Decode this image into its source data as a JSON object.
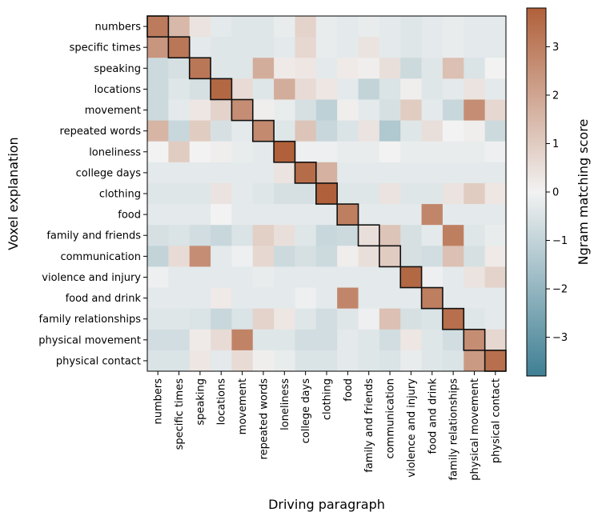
{
  "chart_data": {
    "type": "heatmap",
    "title": "",
    "xlabel": "Driving paragraph",
    "ylabel": "Voxel explanation",
    "row_labels": [
      "numbers",
      "specific times",
      "speaking",
      "locations",
      "movement",
      "repeated words",
      "loneliness",
      "college days",
      "clothing",
      "food",
      "family and friends",
      "communication",
      "violence and injury",
      "food and drink",
      "family relationships",
      "physical movement",
      "physical contact"
    ],
    "col_labels": [
      "numbers",
      "specific times",
      "speaking",
      "locations",
      "movement",
      "repeated words",
      "loneliness",
      "college days",
      "clothing",
      "food",
      "family and friends",
      "communication",
      "violence and injury",
      "food and drink",
      "family relationships",
      "physical movement",
      "physical contact"
    ],
    "values": [
      [
        3.1,
        1.5,
        0.4,
        -0.3,
        -0.4,
        -0.4,
        -0.2,
        0.8,
        -0.2,
        -0.3,
        -0.2,
        -0.3,
        -0.4,
        -0.3,
        -0.2,
        -0.3,
        -0.3
      ],
      [
        2.4,
        3.2,
        -0.3,
        -0.4,
        -0.4,
        -0.4,
        -0.3,
        0.7,
        -0.2,
        -0.3,
        0.4,
        -0.3,
        -0.4,
        -0.3,
        -0.2,
        -0.3,
        -0.3
      ],
      [
        -0.8,
        -0.6,
        3.2,
        -0.4,
        -0.4,
        1.8,
        0.2,
        0.3,
        -0.3,
        0.2,
        0.1,
        0.5,
        -0.8,
        -0.4,
        1.3,
        -0.5,
        0.0
      ],
      [
        -0.8,
        -0.4,
        -0.6,
        3.6,
        0.6,
        -0.4,
        1.8,
        0.6,
        0.3,
        -0.3,
        -1.0,
        -0.5,
        0.1,
        -0.4,
        -0.3,
        0.4,
        -0.3
      ],
      [
        -0.8,
        -0.3,
        0.3,
        0.8,
        2.6,
        0.1,
        -0.2,
        -0.6,
        -1.1,
        0.1,
        -0.3,
        -0.6,
        1.0,
        -0.3,
        -0.9,
        2.6,
        0.7
      ],
      [
        1.6,
        -0.9,
        1.0,
        -0.6,
        -0.3,
        2.7,
        -0.4,
        1.2,
        -0.9,
        -0.5,
        0.4,
        -1.4,
        -0.4,
        0.5,
        0.0,
        0.1,
        -0.8
      ],
      [
        0.0,
        1.0,
        0.0,
        0.1,
        -0.2,
        -0.3,
        3.8,
        -0.1,
        -0.1,
        -0.2,
        -0.2,
        0.0,
        -0.2,
        -0.2,
        -0.2,
        -0.2,
        -0.1
      ],
      [
        -0.3,
        -0.3,
        -0.3,
        -0.3,
        -0.3,
        -0.3,
        0.4,
        3.5,
        1.7,
        -0.3,
        -0.3,
        -0.3,
        -0.3,
        -0.3,
        -0.3,
        -0.3,
        -0.3
      ],
      [
        -0.4,
        -0.4,
        -0.4,
        0.4,
        -0.3,
        -0.4,
        -0.6,
        -0.6,
        3.8,
        -0.4,
        -0.4,
        0.4,
        -0.4,
        -0.4,
        0.4,
        1.0,
        0.3
      ],
      [
        -0.3,
        -0.3,
        -0.3,
        0.0,
        -0.3,
        -0.3,
        -0.3,
        -0.3,
        -0.3,
        3.0,
        -0.3,
        -0.3,
        -0.3,
        2.8,
        -0.3,
        -0.3,
        -0.3
      ],
      [
        -0.6,
        -0.5,
        -0.7,
        -0.9,
        -0.5,
        0.9,
        0.5,
        -0.4,
        -0.9,
        -0.8,
        0.5,
        1.2,
        -0.6,
        -0.3,
        3.0,
        -0.4,
        -0.2
      ],
      [
        -1.0,
        0.6,
        2.6,
        -0.3,
        -0.1,
        0.7,
        -0.8,
        -0.6,
        -0.8,
        0.1,
        0.5,
        1.0,
        -0.6,
        -0.7,
        1.3,
        -0.6,
        0.2
      ],
      [
        -0.1,
        -0.3,
        -0.3,
        -0.3,
        -0.3,
        -0.2,
        -0.3,
        -0.3,
        -0.3,
        -0.3,
        -0.3,
        -0.3,
        3.6,
        -0.1,
        -0.3,
        0.4,
        0.8
      ],
      [
        -0.3,
        -0.3,
        -0.3,
        0.2,
        -0.3,
        -0.3,
        -0.3,
        -0.1,
        -0.3,
        2.8,
        -0.3,
        -0.3,
        -0.3,
        3.0,
        -0.3,
        -0.3,
        -0.3
      ],
      [
        -0.4,
        -0.4,
        -0.5,
        -0.9,
        -0.5,
        0.8,
        0.3,
        -0.4,
        -0.7,
        -0.4,
        -0.1,
        1.3,
        -0.6,
        -0.5,
        3.4,
        -0.4,
        -0.3
      ],
      [
        -0.7,
        -0.7,
        0.2,
        0.6,
        2.9,
        -0.4,
        -0.4,
        -0.7,
        -0.7,
        -0.3,
        -0.4,
        -0.7,
        0.3,
        -0.4,
        -0.7,
        2.6,
        0.7
      ],
      [
        -0.5,
        -0.5,
        0.3,
        -0.3,
        0.6,
        0.1,
        -0.2,
        -0.5,
        -0.5,
        -0.3,
        -0.4,
        -0.5,
        -0.2,
        -0.4,
        -0.5,
        2.3,
        3.4
      ]
    ],
    "diagonal_outlined": true,
    "vmin": -3.8,
    "vmax": 3.8,
    "colorbar": {
      "label": "Ngram matching score",
      "ticks": [
        -3,
        -2,
        -1,
        0,
        1,
        2,
        3
      ],
      "low_color": "#3f7f94",
      "mid_color": "#f2f2f2",
      "high_color": "#b0603a"
    },
    "grid": false
  }
}
